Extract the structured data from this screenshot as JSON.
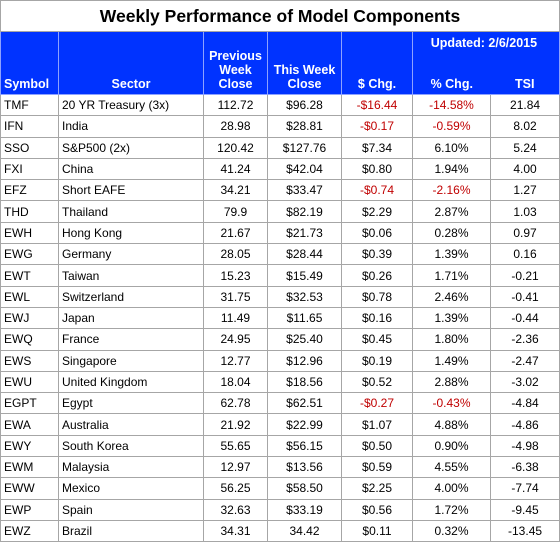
{
  "title": "Weekly Performance of Model Components",
  "updated": "Updated:  2/6/2015",
  "columns": {
    "symbol": "Symbol",
    "sector": "Sector",
    "prev_close_1": "Previous",
    "prev_close_2": "Week",
    "prev_close_3": "Close",
    "this_close_1": "This Week",
    "this_close_2": "Close",
    "dollar_chg": "$ Chg.",
    "pct_chg": "% Chg.",
    "tsi": "TSI"
  },
  "colors": {
    "header_bg": "#0033ff",
    "header_text": "#ffffff",
    "negative": "#c00000",
    "border": "#a6a6a6"
  },
  "rows": [
    {
      "symbol": "TMF",
      "sector": "20 YR Treasury  (3x)",
      "prev": "112.72",
      "this": "$96.28",
      "chg": "-$16.44",
      "pct": "-14.58%",
      "tsi": "21.84",
      "neg": true
    },
    {
      "symbol": "IFN",
      "sector": "India",
      "prev": "28.98",
      "this": "$28.81",
      "chg": "-$0.17",
      "pct": "-0.59%",
      "tsi": "8.02",
      "neg": true
    },
    {
      "symbol": "SSO",
      "sector": "S&P500 (2x)",
      "prev": "120.42",
      "this": "$127.76",
      "chg": "$7.34",
      "pct": "6.10%",
      "tsi": "5.24",
      "neg": false
    },
    {
      "symbol": "FXI",
      "sector": "China",
      "prev": "41.24",
      "this": "$42.04",
      "chg": "$0.80",
      "pct": "1.94%",
      "tsi": "4.00",
      "neg": false
    },
    {
      "symbol": "EFZ",
      "sector": "Short EAFE",
      "prev": "34.21",
      "this": "$33.47",
      "chg": "-$0.74",
      "pct": "-2.16%",
      "tsi": "1.27",
      "neg": true
    },
    {
      "symbol": "THD",
      "sector": "Thailand",
      "prev": "79.9",
      "this": "$82.19",
      "chg": "$2.29",
      "pct": "2.87%",
      "tsi": "1.03",
      "neg": false
    },
    {
      "symbol": "EWH",
      "sector": "Hong Kong",
      "prev": "21.67",
      "this": "$21.73",
      "chg": "$0.06",
      "pct": "0.28%",
      "tsi": "0.97",
      "neg": false
    },
    {
      "symbol": "EWG",
      "sector": "Germany",
      "prev": "28.05",
      "this": "$28.44",
      "chg": "$0.39",
      "pct": "1.39%",
      "tsi": "0.16",
      "neg": false
    },
    {
      "symbol": "EWT",
      "sector": "Taiwan",
      "prev": "15.23",
      "this": "$15.49",
      "chg": "$0.26",
      "pct": "1.71%",
      "tsi": "-0.21",
      "neg": false
    },
    {
      "symbol": "EWL",
      "sector": "Switzerland",
      "prev": "31.75",
      "this": "$32.53",
      "chg": "$0.78",
      "pct": "2.46%",
      "tsi": "-0.41",
      "neg": false
    },
    {
      "symbol": "EWJ",
      "sector": "Japan",
      "prev": "11.49",
      "this": "$11.65",
      "chg": "$0.16",
      "pct": "1.39%",
      "tsi": "-0.44",
      "neg": false
    },
    {
      "symbol": "EWQ",
      "sector": "France",
      "prev": "24.95",
      "this": "$25.40",
      "chg": "$0.45",
      "pct": "1.80%",
      "tsi": "-2.36",
      "neg": false
    },
    {
      "symbol": "EWS",
      "sector": "Singapore",
      "prev": "12.77",
      "this": "$12.96",
      "chg": "$0.19",
      "pct": "1.49%",
      "tsi": "-2.47",
      "neg": false
    },
    {
      "symbol": "EWU",
      "sector": "United Kingdom",
      "prev": "18.04",
      "this": "$18.56",
      "chg": "$0.52",
      "pct": "2.88%",
      "tsi": "-3.02",
      "neg": false
    },
    {
      "symbol": "EGPT",
      "sector": "Egypt",
      "prev": "62.78",
      "this": "$62.51",
      "chg": "-$0.27",
      "pct": "-0.43%",
      "tsi": "-4.84",
      "neg": true
    },
    {
      "symbol": "EWA",
      "sector": "Australia",
      "prev": "21.92",
      "this": "$22.99",
      "chg": "$1.07",
      "pct": "4.88%",
      "tsi": "-4.86",
      "neg": false
    },
    {
      "symbol": "EWY",
      "sector": "South Korea",
      "prev": "55.65",
      "this": "$56.15",
      "chg": "$0.50",
      "pct": "0.90%",
      "tsi": "-4.98",
      "neg": false
    },
    {
      "symbol": "EWM",
      "sector": "Malaysia",
      "prev": "12.97",
      "this": "$13.56",
      "chg": "$0.59",
      "pct": "4.55%",
      "tsi": "-6.38",
      "neg": false
    },
    {
      "symbol": "EWW",
      "sector": "Mexico",
      "prev": "56.25",
      "this": "$58.50",
      "chg": "$2.25",
      "pct": "4.00%",
      "tsi": "-7.74",
      "neg": false
    },
    {
      "symbol": "EWP",
      "sector": "Spain",
      "prev": "32.63",
      "this": "$33.19",
      "chg": "$0.56",
      "pct": "1.72%",
      "tsi": "-9.45",
      "neg": false
    },
    {
      "symbol": "EWZ",
      "sector": "Brazil",
      "prev": "34.31",
      "this": "34.42",
      "chg": "$0.11",
      "pct": "0.32%",
      "tsi": "-13.45",
      "neg": false
    }
  ]
}
